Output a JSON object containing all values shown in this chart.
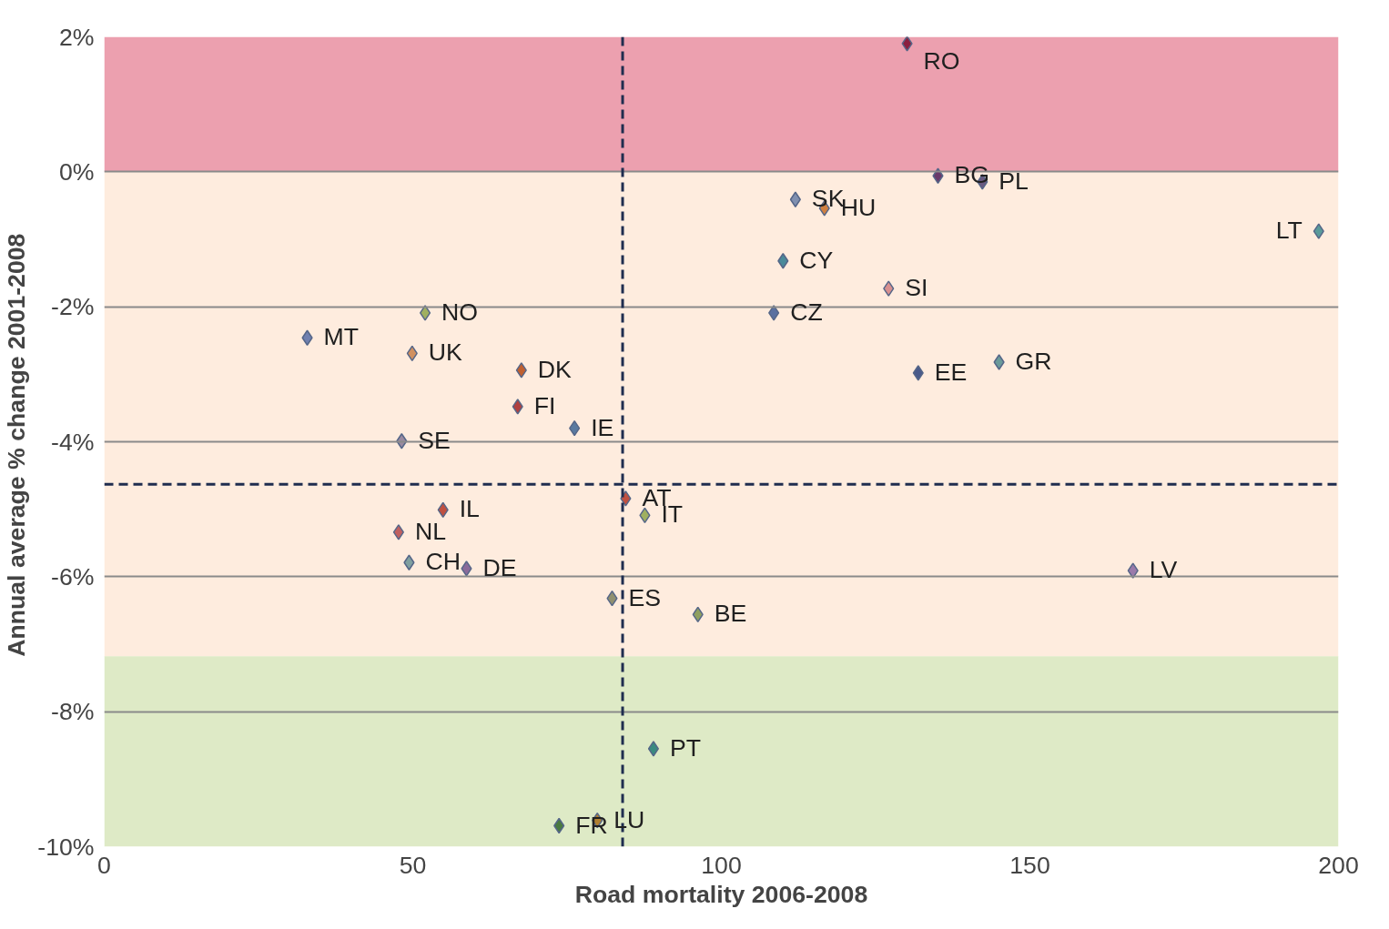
{
  "chart_data": {
    "type": "scatter",
    "xlabel": "Road mortality 2006-2008",
    "ylabel": "Annual average % change  2001-2008",
    "x": [
      130.1,
      135.1,
      142.3,
      112.0,
      116.7,
      196.8,
      110.0,
      127.1,
      108.5,
      131.9,
      145.0,
      52.0,
      32.9,
      49.9,
      67.6,
      67.0,
      76.2,
      48.2,
      84.5,
      54.9,
      47.7,
      87.6,
      49.4,
      58.7,
      166.7,
      82.3,
      96.2,
      89.0,
      79.9,
      73.7
    ],
    "values": [
      1.9,
      -0.06,
      -0.15,
      -0.41,
      -0.54,
      -0.88,
      -1.32,
      -1.73,
      -2.09,
      -2.98,
      -2.82,
      -2.09,
      -2.46,
      -2.69,
      -2.94,
      -3.48,
      -3.8,
      -3.99,
      -4.84,
      -5.01,
      -5.34,
      -5.09,
      -5.79,
      -5.88,
      -5.91,
      -6.32,
      -6.56,
      -8.55,
      -9.61,
      -9.69
    ],
    "colors": [
      "#8b2040",
      "#6a3a6a",
      "#6a5a80",
      "#8090b0",
      "#d08040",
      "#5a9a9a",
      "#4a8a9a",
      "#d89090",
      "#5a70a0",
      "#4a5a8a",
      "#6a9a9a",
      "#a0b060",
      "#7080b0",
      "#d09060",
      "#c06030",
      "#b04040",
      "#5a7aa0",
      "#9a8aa0",
      "#c05040",
      "#c05040",
      "#c06060",
      "#a0b060",
      "#80a0a0",
      "#8a6a9a",
      "#9a7aaa",
      "#909070",
      "#90a060",
      "#3a8a80",
      "#b08030",
      "#4a7a40"
    ],
    "marker": "diamond",
    "annotations": [
      {
        "text": "RO",
        "x": 130.1,
        "y": 1.9
      },
      {
        "text": "BG",
        "x": 135.1,
        "y": -0.06
      },
      {
        "text": "PL",
        "x": 142.3,
        "y": -0.15
      },
      {
        "text": "SK",
        "x": 112.0,
        "y": -0.41
      },
      {
        "text": "HU",
        "x": 116.7,
        "y": -0.54
      },
      {
        "text": "LT",
        "x": 196.8,
        "y": -0.88
      },
      {
        "text": "CY",
        "x": 110.0,
        "y": -1.32
      },
      {
        "text": "SI",
        "x": 127.1,
        "y": -1.73
      },
      {
        "text": "CZ",
        "x": 108.5,
        "y": -2.09
      },
      {
        "text": "EE",
        "x": 131.9,
        "y": -2.98
      },
      {
        "text": "GR",
        "x": 145.0,
        "y": -2.82
      },
      {
        "text": "NO",
        "x": 52.0,
        "y": -2.09
      },
      {
        "text": "MT",
        "x": 32.9,
        "y": -2.46
      },
      {
        "text": "UK",
        "x": 49.9,
        "y": -2.69
      },
      {
        "text": "DK",
        "x": 67.6,
        "y": -2.94
      },
      {
        "text": "FI",
        "x": 67.0,
        "y": -3.48
      },
      {
        "text": "IE",
        "x": 76.2,
        "y": -3.8
      },
      {
        "text": "SE",
        "x": 48.2,
        "y": -3.99
      },
      {
        "text": "AT",
        "x": 84.5,
        "y": -4.84
      },
      {
        "text": "IL",
        "x": 54.9,
        "y": -5.01
      },
      {
        "text": "NL",
        "x": 47.7,
        "y": -5.34
      },
      {
        "text": "IT",
        "x": 87.6,
        "y": -5.09
      },
      {
        "text": "CH",
        "x": 49.4,
        "y": -5.79
      },
      {
        "text": "DE",
        "x": 58.7,
        "y": -5.88
      },
      {
        "text": "LV",
        "x": 166.7,
        "y": -5.91
      },
      {
        "text": "ES",
        "x": 82.3,
        "y": -6.32
      },
      {
        "text": "BE",
        "x": 96.2,
        "y": -6.56
      },
      {
        "text": "PT",
        "x": 89.0,
        "y": -8.55
      },
      {
        "text": "LU",
        "x": 79.9,
        "y": -9.61
      },
      {
        "text": "FR",
        "x": 73.7,
        "y": -9.69
      }
    ],
    "xlim": [
      0,
      200
    ],
    "xticks": [
      0,
      50,
      100,
      150,
      200
    ],
    "ylim": [
      -10,
      2
    ],
    "yticks": [
      {
        "value": 2,
        "label": "2%"
      },
      {
        "value": 0,
        "label": "0%"
      },
      {
        "value": -2,
        "label": "-2%"
      },
      {
        "value": -4,
        "label": "-4%"
      },
      {
        "value": -6,
        "label": "-6%"
      },
      {
        "value": -8,
        "label": "-8%"
      },
      {
        "value": -10,
        "label": "-10%"
      }
    ],
    "grid": "y",
    "ref_lines": [
      {
        "axis": "x",
        "value": 84,
        "color": "#1f2d4f",
        "line_style": "dashed"
      },
      {
        "axis": "y",
        "value": -4.63,
        "color": "#1f2d4f",
        "line_style": "dashed"
      }
    ],
    "bands": [
      {
        "axis": "y",
        "from": 0,
        "to": 2,
        "color": "#e0607a"
      },
      {
        "axis": "y",
        "from": -7.18,
        "to": 0,
        "color": "#fde0c8"
      },
      {
        "axis": "y",
        "from": -10,
        "to": -7.18,
        "color": "#c8dca0"
      }
    ]
  }
}
